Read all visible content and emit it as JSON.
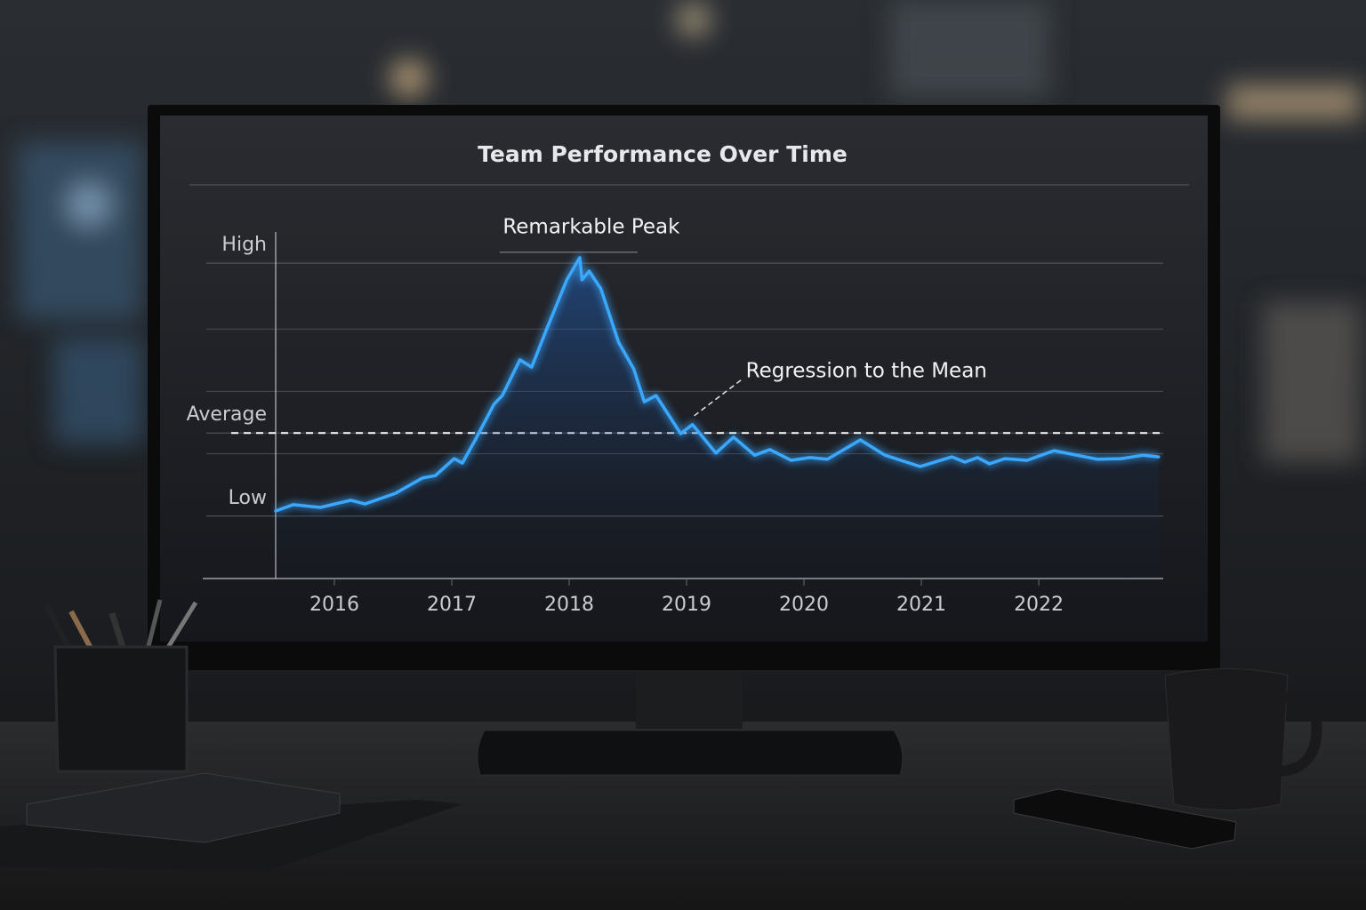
{
  "chart_data": {
    "type": "line",
    "title": "Team Performance Over Time",
    "x": [
      2015.5,
      2015.65,
      2015.88,
      2016.14,
      2016.26,
      2016.52,
      2016.75,
      2016.86,
      2017.02,
      2017.09,
      2017.2,
      2017.36,
      2017.43,
      2017.58,
      2017.68,
      2017.81,
      2017.98,
      2018.09,
      2018.11,
      2018.17,
      2018.27,
      2018.42,
      2018.55,
      2018.64,
      2018.74,
      2018.95,
      2019.05,
      2019.25,
      2019.4,
      2019.58,
      2019.71,
      2019.89,
      2020.05,
      2020.2,
      2020.48,
      2020.69,
      2020.99,
      2021.26,
      2021.37,
      2021.48,
      2021.58,
      2021.71,
      2021.9,
      2022.13,
      2022.5,
      2022.7,
      2022.89,
      2023.02
    ],
    "values": [
      19.5,
      21.3,
      20.5,
      22.6,
      21.5,
      24.6,
      29.0,
      29.7,
      34.6,
      33.3,
      40.0,
      50.3,
      52.8,
      63.1,
      61.0,
      72.1,
      86.2,
      92.6,
      86.2,
      88.7,
      83.6,
      68.2,
      60.5,
      51.0,
      52.8,
      41.8,
      44.4,
      36.2,
      40.8,
      35.6,
      37.2,
      34.1,
      34.9,
      34.4,
      40.0,
      35.6,
      32.3,
      35.1,
      33.6,
      34.9,
      33.1,
      34.6,
      34.1,
      36.9,
      34.4,
      34.6,
      35.6,
      35.1
    ],
    "color": "#3aa8ff",
    "xlim": [
      2015.5,
      2023.06
    ],
    "xticks": [
      2016,
      2017,
      2018,
      2019,
      2020,
      2021,
      2022
    ],
    "ylim": [
      0,
      100
    ],
    "yticks": [
      {
        "value": 18,
        "label": "Low"
      },
      {
        "value": 42,
        "label": "Average"
      },
      {
        "value": 91,
        "label": "High"
      }
    ],
    "ygrid": [
      36,
      54,
      72
    ],
    "grid": true,
    "reference_line": {
      "value": 42,
      "style": "dashed",
      "color": "#ffffff"
    },
    "annotations": [
      {
        "text": "Remarkable Peak",
        "x": 2018.09,
        "y": 92.6
      },
      {
        "text": "Regression to the Mean",
        "x": 2019.05,
        "y": 44.4
      }
    ]
  }
}
